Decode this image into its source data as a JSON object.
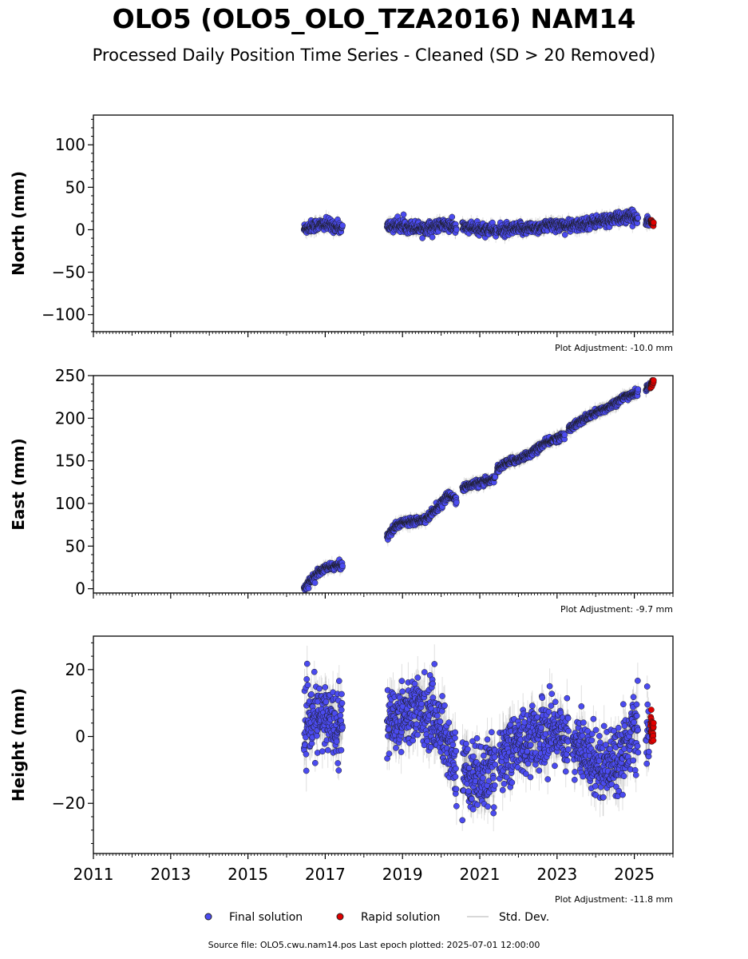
{
  "title": "OLO5 (OLO5_OLO_TZA2016) NAM14",
  "subtitle": "Processed Daily Position Time Series - Cleaned (SD > 20 Removed)",
  "footer": "Source file: OLO5.cwu.nam14.pos  Last epoch plotted: 2025-07-01 12:00:00",
  "legend": [
    {
      "label": "Final solution",
      "color": "#4b4bf0"
    },
    {
      "label": "Rapid solution",
      "color": "#e00000"
    },
    {
      "label": "Std. Dev.",
      "color": "#cccccc"
    }
  ],
  "colors": {
    "final": "#4b4bf0",
    "rapid": "#e00000",
    "std": "#555555"
  },
  "chart_data": [
    {
      "type": "scatter",
      "ylabel": "North (mm)",
      "xlim": [
        2011,
        2026
      ],
      "ylim": [
        -120,
        135
      ],
      "yticks": [
        -100,
        -50,
        0,
        50,
        100
      ],
      "adjustment": "Plot Adjustment: -10.0 mm",
      "series": [
        {
          "name": "Final solution",
          "segments": [
            {
              "x": [
                2016.45,
                2016.7,
                2016.95,
                2017.2,
                2017.45
              ],
              "y": [
                1,
                5,
                6,
                5,
                1
              ]
            },
            {
              "x": [
                2018.6,
                2018.9,
                2019.2,
                2019.5,
                2019.8,
                2020.1,
                2020.4
              ],
              "y": [
                4,
                5,
                4,
                2,
                3,
                6,
                2
              ]
            },
            {
              "x": [
                2020.55,
                2020.8,
                2021.0,
                2021.2,
                2021.45
              ],
              "y": [
                3,
                2,
                1,
                1,
                -1
              ]
            },
            {
              "x": [
                2021.5,
                2021.8,
                2022.0,
                2022.3,
                2022.6,
                2022.9,
                2023.2
              ],
              "y": [
                -1,
                0,
                1,
                2,
                3,
                6,
                5
              ]
            },
            {
              "x": [
                2023.2,
                2023.5,
                2023.8,
                2024.1,
                2024.4,
                2024.7,
                2025.1
              ],
              "y": [
                4,
                5,
                8,
                10,
                12,
                14,
                15
              ]
            },
            {
              "x": [
                2025.3,
                2025.4
              ],
              "y": [
                10,
                9
              ]
            }
          ],
          "noise": 5
        },
        {
          "name": "Rapid solution",
          "segments": [
            {
              "x": [
                2025.42,
                2025.5
              ],
              "y": [
                10,
                7
              ]
            }
          ],
          "noise": 2
        }
      ],
      "std_dev_range": [
        6,
        22
      ]
    },
    {
      "type": "scatter",
      "ylabel": "East (mm)",
      "xlim": [
        2011,
        2026
      ],
      "ylim": [
        -5,
        250
      ],
      "yticks": [
        0,
        50,
        100,
        150,
        200,
        250
      ],
      "adjustment": "Plot Adjustment: -9.7 mm",
      "series": [
        {
          "name": "Final solution",
          "segments": [
            {
              "x": [
                2016.45,
                2016.6,
                2016.8,
                2017.0,
                2017.2,
                2017.45
              ],
              "y": [
                0,
                8,
                18,
                24,
                26,
                28
              ]
            },
            {
              "x": [
                2018.6,
                2018.8,
                2019.0,
                2019.3,
                2019.6,
                2019.9,
                2020.2,
                2020.4
              ],
              "y": [
                62,
                72,
                78,
                80,
                82,
                95,
                110,
                105
              ]
            },
            {
              "x": [
                2020.55,
                2020.8,
                2021.1,
                2021.4
              ],
              "y": [
                118,
                122,
                125,
                130
              ]
            },
            {
              "x": [
                2021.45,
                2021.7,
                2022.0,
                2022.3,
                2022.6,
                2022.9,
                2023.2
              ],
              "y": [
                140,
                148,
                152,
                158,
                168,
                175,
                180
              ]
            },
            {
              "x": [
                2023.3,
                2023.6,
                2023.9,
                2024.2,
                2024.5,
                2024.8,
                2025.1
              ],
              "y": [
                188,
                196,
                204,
                210,
                218,
                226,
                230
              ]
            },
            {
              "x": [
                2025.3,
                2025.4
              ],
              "y": [
                234,
                238
              ]
            }
          ],
          "noise": 3
        },
        {
          "name": "Rapid solution",
          "segments": [
            {
              "x": [
                2025.42,
                2025.5
              ],
              "y": [
                238,
                244
              ]
            }
          ],
          "noise": 2
        }
      ],
      "std_dev_range": [
        6,
        22
      ]
    },
    {
      "type": "scatter",
      "ylabel": "Height (mm)",
      "xlim": [
        2011,
        2026
      ],
      "ylim": [
        -35,
        30
      ],
      "yticks": [
        -20,
        0,
        20
      ],
      "adjustment": "Plot Adjustment: -11.8 mm",
      "xticks": [
        "2011",
        "2013",
        "2015",
        "2017",
        "2019",
        "2021",
        "2023",
        "2025"
      ],
      "series": [
        {
          "name": "Final solution",
          "segments": [
            {
              "x": [
                2016.45,
                2016.7,
                2016.95,
                2017.2,
                2017.45
              ],
              "y": [
                2,
                5,
                6,
                5,
                4
              ]
            },
            {
              "x": [
                2018.6,
                2018.9,
                2019.2,
                2019.5,
                2019.8,
                2020.1,
                2020.4
              ],
              "y": [
                4,
                6,
                8,
                8,
                6,
                0,
                -10
              ]
            },
            {
              "x": [
                2020.55,
                2020.8,
                2021.1,
                2021.4
              ],
              "y": [
                -10,
                -12,
                -12,
                -10
              ]
            },
            {
              "x": [
                2021.5,
                2021.8,
                2022.1,
                2022.4,
                2022.7,
                2023.0,
                2023.3
              ],
              "y": [
                -6,
                -4,
                -2,
                0,
                1,
                2,
                0
              ]
            },
            {
              "x": [
                2023.4,
                2023.7,
                2024.0,
                2024.3,
                2024.6,
                2024.9,
                2025.1
              ],
              "y": [
                -2,
                -5,
                -8,
                -8,
                -6,
                0,
                2
              ]
            },
            {
              "x": [
                2025.3,
                2025.4
              ],
              "y": [
                -2,
                2
              ]
            }
          ],
          "noise": 7
        },
        {
          "name": "Rapid solution",
          "segments": [
            {
              "x": [
                2025.42,
                2025.5
              ],
              "y": [
                4,
                0
              ]
            }
          ],
          "noise": 3
        }
      ],
      "std_dev_range": [
        4,
        18
      ]
    }
  ]
}
